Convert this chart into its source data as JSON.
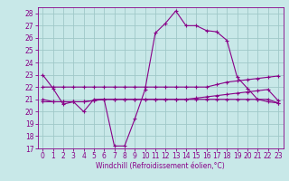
{
  "title": "",
  "xlabel": "Windchill (Refroidissement éolien,°C)",
  "bg_color": "#c8e8e8",
  "grid_color": "#a0c8c8",
  "line_color": "#880088",
  "x_hours": [
    0,
    1,
    2,
    3,
    4,
    5,
    6,
    7,
    8,
    9,
    10,
    11,
    12,
    13,
    14,
    15,
    16,
    17,
    18,
    19,
    20,
    21,
    22,
    23
  ],
  "windchill": [
    23.0,
    21.9,
    20.6,
    20.8,
    20.0,
    21.0,
    21.0,
    17.2,
    17.2,
    19.4,
    21.8,
    26.4,
    27.2,
    28.2,
    27.0,
    27.0,
    26.6,
    26.5,
    25.8,
    22.8,
    21.9,
    21.0,
    20.8,
    20.7
  ],
  "temp_line1": [
    22.0,
    22.0,
    22.0,
    22.0,
    22.0,
    22.0,
    22.0,
    22.0,
    22.0,
    22.0,
    22.0,
    22.0,
    22.0,
    22.0,
    22.0,
    22.0,
    22.0,
    22.2,
    22.4,
    22.5,
    22.6,
    22.7,
    22.8,
    22.9
  ],
  "temp_line2": [
    21.0,
    20.8,
    20.8,
    20.8,
    20.8,
    20.9,
    21.0,
    21.0,
    21.0,
    21.0,
    21.0,
    21.0,
    21.0,
    21.0,
    21.0,
    21.1,
    21.2,
    21.3,
    21.4,
    21.5,
    21.6,
    21.7,
    21.8,
    20.9
  ],
  "temp_line3": [
    20.8,
    20.8,
    20.8,
    20.8,
    20.8,
    20.9,
    21.0,
    21.0,
    21.0,
    21.0,
    21.0,
    21.0,
    21.0,
    21.0,
    21.0,
    21.0,
    21.0,
    21.0,
    21.0,
    21.0,
    21.0,
    21.0,
    21.0,
    20.7
  ],
  "ylim": [
    17,
    28.5
  ],
  "yticks": [
    17,
    18,
    19,
    20,
    21,
    22,
    23,
    24,
    25,
    26,
    27,
    28
  ],
  "xlim": [
    -0.5,
    23.5
  ],
  "xticks": [
    0,
    1,
    2,
    3,
    4,
    5,
    6,
    7,
    8,
    9,
    10,
    11,
    12,
    13,
    14,
    15,
    16,
    17,
    18,
    19,
    20,
    21,
    22,
    23
  ],
  "lw": 0.8,
  "marker_size": 3,
  "tick_fontsize": 5.5,
  "xlabel_fontsize": 5.5
}
